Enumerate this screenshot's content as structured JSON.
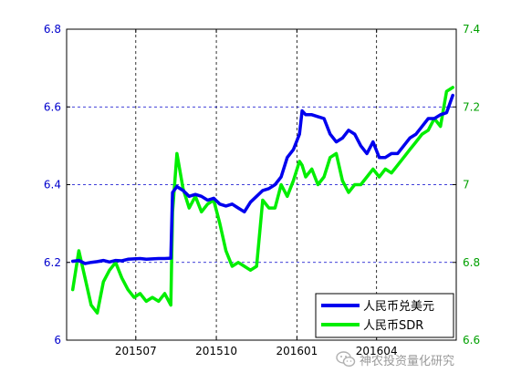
{
  "chart_data": {
    "type": "line",
    "title": "",
    "x_tick_labels": [
      "201507",
      "201510",
      "201601",
      "201604"
    ],
    "y_left": {
      "ticks": [
        6,
        6.2,
        6.4,
        6.6,
        6.8
      ],
      "range": [
        6.0,
        6.8
      ],
      "color": "#0000cc"
    },
    "y_right": {
      "ticks": [
        6.6,
        6.8,
        7,
        7.2,
        7.4
      ],
      "range": [
        6.6,
        7.4
      ],
      "color": "#00a000"
    },
    "grid": true,
    "legend_position": "bottom-right",
    "series": [
      {
        "name": "人民币兑美元",
        "axis": "left",
        "color": "#0000ee",
        "x": [
          "2015-04-20",
          "2015-04-27",
          "2015-05-04",
          "2015-05-11",
          "2015-05-18",
          "2015-05-25",
          "2015-06-01",
          "2015-06-08",
          "2015-06-15",
          "2015-06-22",
          "2015-06-29",
          "2015-07-06",
          "2015-07-13",
          "2015-07-20",
          "2015-07-27",
          "2015-08-03",
          "2015-08-10",
          "2015-08-12",
          "2015-08-17",
          "2015-08-24",
          "2015-08-31",
          "2015-09-07",
          "2015-09-14",
          "2015-09-21",
          "2015-09-28",
          "2015-10-05",
          "2015-10-12",
          "2015-10-19",
          "2015-10-26",
          "2015-11-02",
          "2015-11-09",
          "2015-11-16",
          "2015-11-23",
          "2015-11-30",
          "2015-12-07",
          "2015-12-14",
          "2015-12-21",
          "2015-12-28",
          "2016-01-04",
          "2016-01-07",
          "2016-01-11",
          "2016-01-18",
          "2016-01-25",
          "2016-02-01",
          "2016-02-08",
          "2016-02-15",
          "2016-02-22",
          "2016-02-29",
          "2016-03-07",
          "2016-03-14",
          "2016-03-21",
          "2016-03-28",
          "2016-04-04",
          "2016-04-11",
          "2016-04-18",
          "2016-04-25",
          "2016-05-02",
          "2016-05-09",
          "2016-05-16",
          "2016-05-23",
          "2016-05-30",
          "2016-06-06",
          "2016-06-13",
          "2016-06-20",
          "2016-06-27"
        ],
        "values": [
          6.203,
          6.205,
          6.197,
          6.2,
          6.202,
          6.205,
          6.201,
          6.205,
          6.204,
          6.208,
          6.209,
          6.21,
          6.208,
          6.209,
          6.21,
          6.21,
          6.211,
          6.38,
          6.395,
          6.385,
          6.37,
          6.375,
          6.37,
          6.36,
          6.365,
          6.35,
          6.345,
          6.35,
          6.34,
          6.33,
          6.355,
          6.37,
          6.385,
          6.39,
          6.4,
          6.42,
          6.47,
          6.49,
          6.53,
          6.59,
          6.58,
          6.58,
          6.575,
          6.57,
          6.53,
          6.51,
          6.52,
          6.54,
          6.53,
          6.5,
          6.48,
          6.51,
          6.47,
          6.47,
          6.48,
          6.48,
          6.5,
          6.52,
          6.53,
          6.55,
          6.57,
          6.57,
          6.58,
          6.585,
          6.63
        ]
      },
      {
        "name": "人民币SDR",
        "axis": "right",
        "color": "#00ee00",
        "x": [
          "2015-04-20",
          "2015-04-27",
          "2015-05-04",
          "2015-05-11",
          "2015-05-18",
          "2015-05-25",
          "2015-06-01",
          "2015-06-08",
          "2015-06-15",
          "2015-06-22",
          "2015-06-29",
          "2015-07-06",
          "2015-07-13",
          "2015-07-20",
          "2015-07-27",
          "2015-08-03",
          "2015-08-10",
          "2015-08-12",
          "2015-08-17",
          "2015-08-24",
          "2015-08-31",
          "2015-09-07",
          "2015-09-14",
          "2015-09-21",
          "2015-09-28",
          "2015-10-05",
          "2015-10-12",
          "2015-10-19",
          "2015-10-26",
          "2015-11-02",
          "2015-11-09",
          "2015-11-16",
          "2015-11-23",
          "2015-11-30",
          "2015-12-07",
          "2015-12-14",
          "2015-12-21",
          "2015-12-28",
          "2016-01-04",
          "2016-01-07",
          "2016-01-11",
          "2016-01-18",
          "2016-01-25",
          "2016-02-01",
          "2016-02-08",
          "2016-02-15",
          "2016-02-22",
          "2016-02-29",
          "2016-03-07",
          "2016-03-14",
          "2016-03-21",
          "2016-03-28",
          "2016-04-04",
          "2016-04-11",
          "2016-04-18",
          "2016-04-25",
          "2016-05-02",
          "2016-05-09",
          "2016-05-16",
          "2016-05-23",
          "2016-05-30",
          "2016-06-06",
          "2016-06-13",
          "2016-06-20",
          "2016-06-27"
        ],
        "values": [
          6.73,
          6.83,
          6.76,
          6.69,
          6.67,
          6.75,
          6.78,
          6.8,
          6.76,
          6.73,
          6.71,
          6.72,
          6.7,
          6.71,
          6.7,
          6.72,
          6.69,
          6.93,
          7.08,
          6.99,
          6.94,
          6.97,
          6.93,
          6.95,
          6.96,
          6.9,
          6.83,
          6.79,
          6.8,
          6.79,
          6.78,
          6.79,
          6.96,
          6.94,
          6.94,
          7.0,
          6.97,
          7.01,
          7.06,
          7.05,
          7.02,
          7.04,
          7.0,
          7.02,
          7.07,
          7.08,
          7.01,
          6.98,
          7.0,
          7.0,
          7.02,
          7.04,
          7.02,
          7.04,
          7.03,
          7.05,
          7.07,
          7.09,
          7.11,
          7.13,
          7.14,
          7.17,
          7.15,
          7.24,
          7.25
        ]
      }
    ]
  },
  "watermark": {
    "text": "神农投资量化研究"
  }
}
